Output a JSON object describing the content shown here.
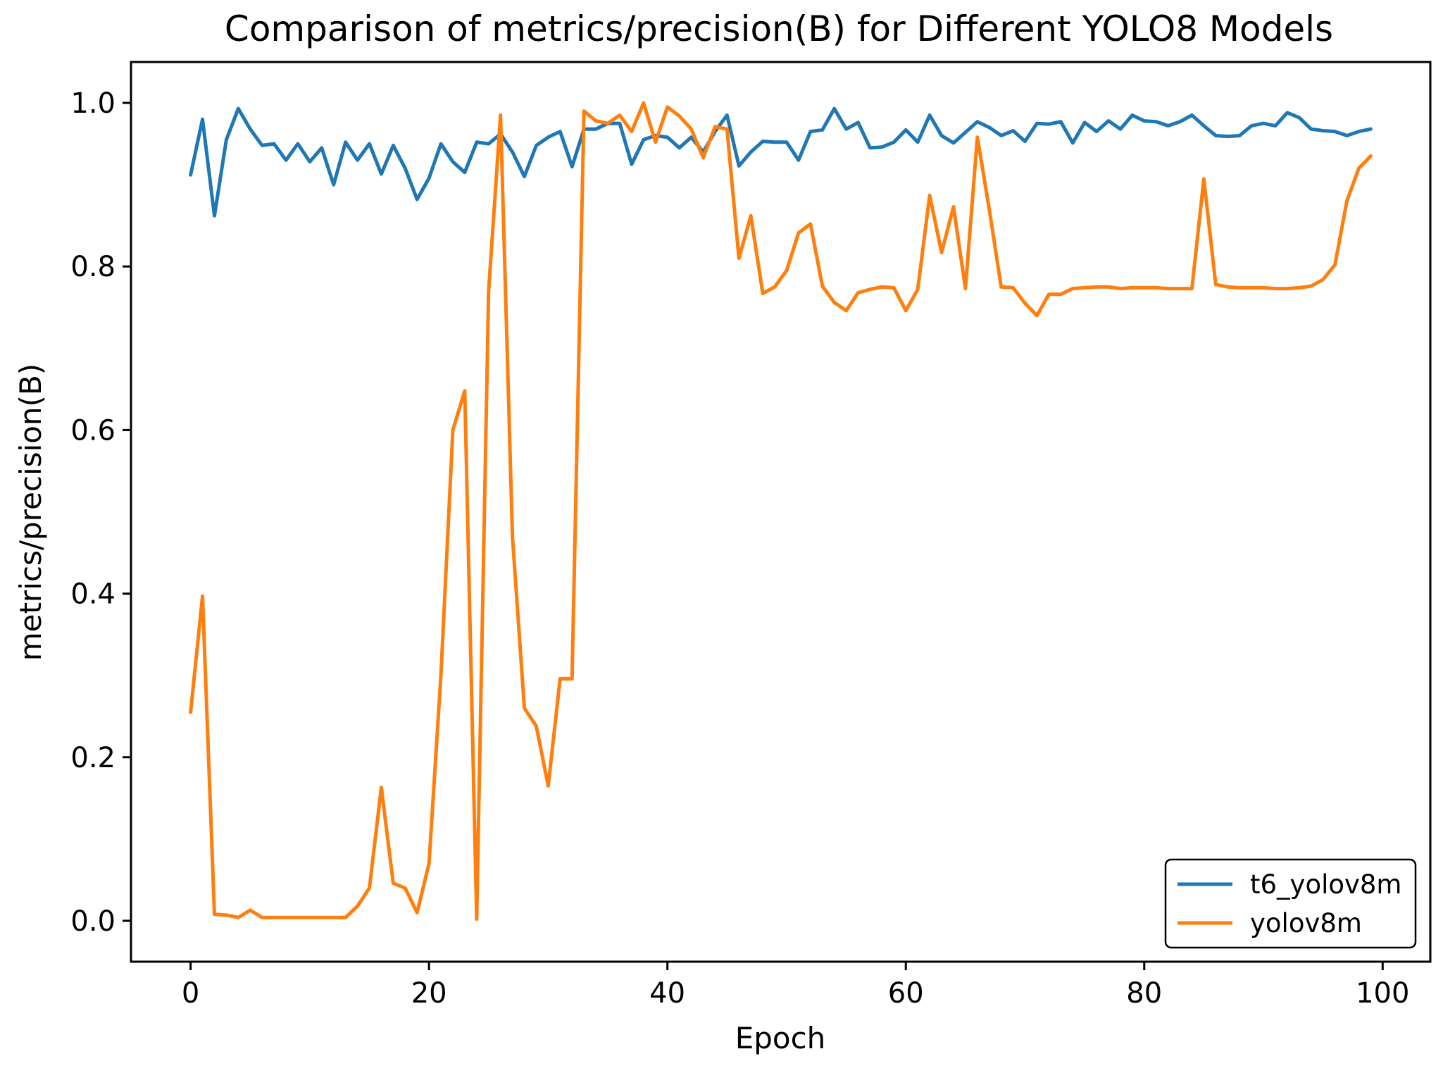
{
  "chart_data": {
    "type": "line",
    "title": "Comparison of metrics/precision(B) for Different YOLO8 Models",
    "xlabel": "Epoch",
    "ylabel": "metrics/precision(B)",
    "xlim": [
      -5,
      104
    ],
    "ylim": [
      -0.05,
      1.05
    ],
    "xticks": [
      0,
      20,
      40,
      60,
      80,
      100
    ],
    "yticks": [
      0.0,
      0.2,
      0.4,
      0.6,
      0.8,
      1.0
    ],
    "xtick_labels": [
      "0",
      "20",
      "40",
      "60",
      "80",
      "100"
    ],
    "ytick_labels": [
      "0.0",
      "0.2",
      "0.4",
      "0.6",
      "0.8",
      "1.0"
    ],
    "grid": false,
    "legend_position": "bottom-right",
    "series": [
      {
        "name": "t6_yolov8m",
        "color": "#1f77b4",
        "values": [
          0.912,
          0.98,
          0.862,
          0.955,
          0.993,
          0.968,
          0.948,
          0.95,
          0.93,
          0.95,
          0.928,
          0.945,
          0.9,
          0.952,
          0.93,
          0.95,
          0.913,
          0.948,
          0.92,
          0.882,
          0.908,
          0.95,
          0.928,
          0.915,
          0.952,
          0.95,
          0.962,
          0.94,
          0.91,
          0.948,
          0.958,
          0.965,
          0.922,
          0.968,
          0.968,
          0.975,
          0.975,
          0.925,
          0.955,
          0.96,
          0.958,
          0.945,
          0.958,
          0.94,
          0.965,
          0.985,
          0.923,
          0.94,
          0.953,
          0.952,
          0.952,
          0.93,
          0.965,
          0.967,
          0.993,
          0.968,
          0.976,
          0.945,
          0.946,
          0.952,
          0.967,
          0.952,
          0.985,
          0.96,
          0.951,
          0.964,
          0.977,
          0.97,
          0.96,
          0.966,
          0.953,
          0.975,
          0.974,
          0.977,
          0.951,
          0.976,
          0.965,
          0.978,
          0.968,
          0.985,
          0.978,
          0.977,
          0.972,
          0.977,
          0.985,
          0.972,
          0.96,
          0.959,
          0.96,
          0.972,
          0.975,
          0.972,
          0.988,
          0.982,
          0.968,
          0.966,
          0.965,
          0.96,
          0.965,
          0.968
        ]
      },
      {
        "name": "yolov8m",
        "color": "#ff7f0e",
        "values": [
          0.255,
          0.397,
          0.008,
          0.007,
          0.004,
          0.013,
          0.004,
          0.004,
          0.004,
          0.004,
          0.004,
          0.004,
          0.004,
          0.004,
          0.018,
          0.04,
          0.163,
          0.046,
          0.04,
          0.01,
          0.07,
          0.3,
          0.6,
          0.648,
          0.002,
          0.77,
          0.985,
          0.47,
          0.26,
          0.238,
          0.165,
          0.296,
          0.296,
          0.99,
          0.978,
          0.975,
          0.985,
          0.965,
          1.0,
          0.952,
          0.995,
          0.984,
          0.968,
          0.933,
          0.971,
          0.968,
          0.81,
          0.862,
          0.767,
          0.775,
          0.795,
          0.841,
          0.852,
          0.776,
          0.756,
          0.746,
          0.768,
          0.772,
          0.775,
          0.774,
          0.746,
          0.772,
          0.887,
          0.817,
          0.873,
          0.773,
          0.958,
          0.87,
          0.775,
          0.774,
          0.755,
          0.74,
          0.766,
          0.766,
          0.773,
          0.774,
          0.775,
          0.775,
          0.773,
          0.774,
          0.774,
          0.774,
          0.773,
          0.773,
          0.773,
          0.907,
          0.778,
          0.775,
          0.774,
          0.774,
          0.774,
          0.773,
          0.773,
          0.774,
          0.776,
          0.784,
          0.802,
          0.88,
          0.92,
          0.935
        ]
      }
    ]
  }
}
